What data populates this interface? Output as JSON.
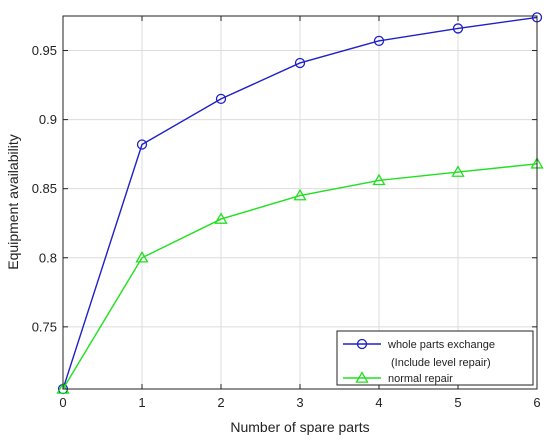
{
  "chart_data": {
    "type": "line",
    "title": "",
    "xlabel": "Number of spare parts",
    "ylabel": "Equipment availability",
    "xlim": [
      0,
      6
    ],
    "ylim": [
      0.705,
      0.975
    ],
    "x_ticks": [
      0,
      1,
      2,
      3,
      4,
      5,
      6
    ],
    "y_ticks": [
      0.75,
      0.8,
      0.85,
      0.9,
      0.95
    ],
    "x": [
      0,
      1,
      2,
      3,
      4,
      5,
      6
    ],
    "grid": true,
    "legend_position": "bottom-right",
    "series": [
      {
        "name": "whole parts exchange",
        "name_line2": "(Include level repair)",
        "values": [
          0.705,
          0.882,
          0.915,
          0.941,
          0.957,
          0.966,
          0.974
        ],
        "color": "#2020c8",
        "marker": "circle"
      },
      {
        "name": "normal repair",
        "values": [
          0.705,
          0.8,
          0.828,
          0.845,
          0.856,
          0.862,
          0.868
        ],
        "color": "#20e020",
        "marker": "triangle"
      }
    ]
  }
}
